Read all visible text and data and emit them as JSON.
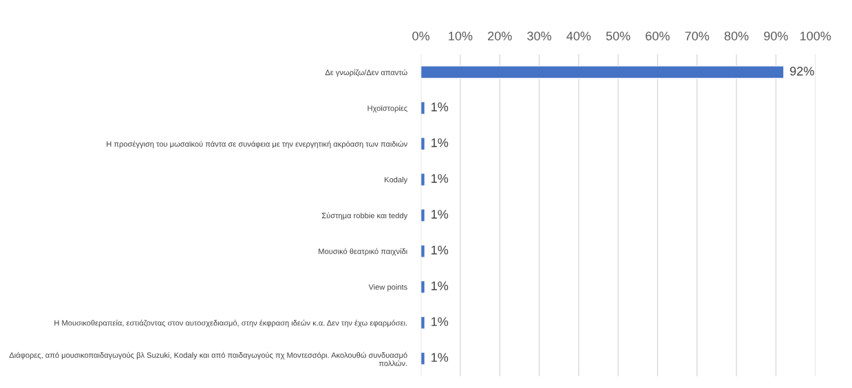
{
  "chart_data": {
    "type": "bar",
    "orientation": "horizontal",
    "categories": [
      "Δε γνωρίζω/Δεν απαντώ",
      "Ηχοϊστορίες",
      "Η προσέγγιση του μωσαϊκού πάντα σε συνάφεια με την ενεργητική ακρόαση των παιδιών",
      "Kodaly",
      "Σύστημα robbie και teddy",
      "Μουσικό θεατρικό παιχνίδι",
      "View points",
      "Η Μουσικοθεραπεία, εστιάζοντας στον αυτοσχεδιασμό, στην έκφραση ιδεών κ.α. Δεν την έχω εφαρμόσει.",
      "Διάφορες, από μουσικοπαιδαγωγούς βλ Suzuki, Kodaly και από παιδαγωγούς πχ Μοντεσσόρι. Ακολουθώ συνδυασμό πολλών."
    ],
    "values": [
      92,
      1,
      1,
      1,
      1,
      1,
      1,
      1,
      1
    ],
    "value_labels": [
      "92%",
      "1%",
      "1%",
      "1%",
      "1%",
      "1%",
      "1%",
      "1%",
      "1%"
    ],
    "color": "#4472c4",
    "xlim": [
      0,
      100
    ],
    "xticks": [
      {
        "value": 0,
        "label": "0%"
      },
      {
        "value": 10,
        "label": "10%"
      },
      {
        "value": 20,
        "label": "20%"
      },
      {
        "value": 30,
        "label": "30%"
      },
      {
        "value": 40,
        "label": "40%"
      },
      {
        "value": 50,
        "label": "50%"
      },
      {
        "value": 60,
        "label": "60%"
      },
      {
        "value": 70,
        "label": "70%"
      },
      {
        "value": 80,
        "label": "80%"
      },
      {
        "value": 90,
        "label": "90%"
      },
      {
        "value": 100,
        "label": "100%"
      }
    ],
    "grid": "x",
    "legend": false
  }
}
